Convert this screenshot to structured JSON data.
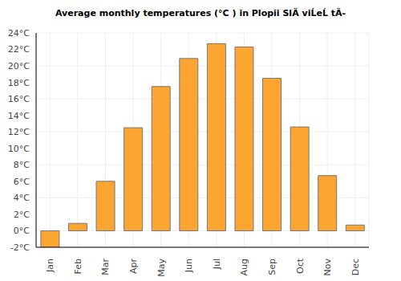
{
  "chart_data": {
    "type": "bar",
    "title": "Average monthly temperatures (°C ) in Plopii SlÄ viĹeĹ tÄ-",
    "categories": [
      "Jan",
      "Feb",
      "Mar",
      "Apr",
      "May",
      "Jun",
      "Jul",
      "Aug",
      "Sep",
      "Oct",
      "Nov",
      "Dec"
    ],
    "values": [
      -2.0,
      0.9,
      6.0,
      12.5,
      17.5,
      20.9,
      22.7,
      22.3,
      18.5,
      12.6,
      6.7,
      0.7
    ],
    "color": "#fca631",
    "ylim": [
      -2,
      24
    ],
    "yticks": [
      {
        "value": -2,
        "label": "-2°C"
      },
      {
        "value": 0,
        "label": "0°C"
      },
      {
        "value": 2,
        "label": "2°C"
      },
      {
        "value": 4,
        "label": "4°C"
      },
      {
        "value": 6,
        "label": "6°C"
      },
      {
        "value": 8,
        "label": "8°C"
      },
      {
        "value": 10,
        "label": "10°C"
      },
      {
        "value": 12,
        "label": "12°C"
      },
      {
        "value": 14,
        "label": "14°C"
      },
      {
        "value": 16,
        "label": "16°C"
      },
      {
        "value": 18,
        "label": "18°C"
      },
      {
        "value": 20,
        "label": "20°C"
      },
      {
        "value": 22,
        "label": "22°C"
      },
      {
        "value": 24,
        "label": "24°C"
      }
    ],
    "grid": true
  }
}
